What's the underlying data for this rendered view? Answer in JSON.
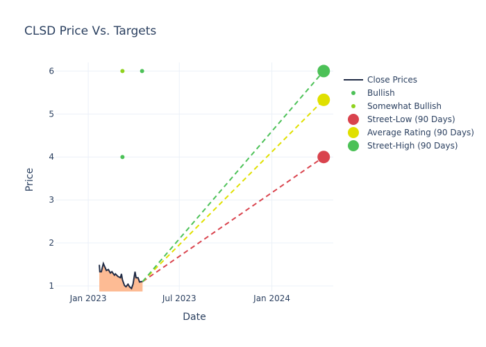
{
  "chart_data": {
    "type": "line",
    "title": "CLSD Price Vs. Targets",
    "xlabel": "Date",
    "ylabel": "Price",
    "xlim": [
      "2022-10-28",
      "2024-05-02"
    ],
    "ylim": [
      0.87,
      6.2
    ],
    "x_ticks": [
      {
        "date": "2023-01-01",
        "label": "Jan 2023"
      },
      {
        "date": "2023-07-01",
        "label": "Jul 2023"
      },
      {
        "date": "2024-01-01",
        "label": "Jan 2024"
      }
    ],
    "y_ticks": [
      1,
      2,
      3,
      4,
      5,
      6
    ],
    "grid": true,
    "legend_position": "right",
    "close_prices": {
      "name": "Close Prices",
      "color": "#1f2a44",
      "fill_color": "#fdbb94",
      "dates": [
        "2023-01-23",
        "2023-01-24",
        "2023-01-27",
        "2023-01-31",
        "2023-02-03",
        "2023-02-06",
        "2023-02-10",
        "2023-02-14",
        "2023-02-17",
        "2023-02-22",
        "2023-02-24",
        "2023-03-01",
        "2023-03-06",
        "2023-03-08",
        "2023-03-10",
        "2023-03-14",
        "2023-03-17",
        "2023-03-21",
        "2023-03-24",
        "2023-03-28",
        "2023-03-31",
        "2023-04-04",
        "2023-04-06",
        "2023-04-10",
        "2023-04-13",
        "2023-04-17",
        "2023-04-19"
      ],
      "values": [
        1.49,
        1.33,
        1.33,
        1.52,
        1.44,
        1.36,
        1.38,
        1.3,
        1.33,
        1.25,
        1.28,
        1.22,
        1.19,
        1.28,
        1.14,
        1.01,
        0.98,
        1.04,
        0.98,
        0.94,
        1.04,
        1.33,
        1.19,
        1.19,
        1.09,
        1.1,
        1.1
      ]
    },
    "ratings": [
      {
        "name": "Bullish",
        "color": "#4cc157",
        "points": [
          {
            "date": "2023-03-10",
            "value": 4
          },
          {
            "date": "2023-04-18",
            "value": 6
          }
        ]
      },
      {
        "name": "Somewhat Bullish",
        "color": "#8fd21e",
        "points": [
          {
            "date": "2023-03-10",
            "value": 6
          }
        ]
      }
    ],
    "targets": {
      "start": {
        "date": "2023-04-19",
        "value": 1.1
      },
      "date": "2024-04-13",
      "series": [
        {
          "name": "Street-Low (90 Days)",
          "value": 4,
          "color": "#d9434d"
        },
        {
          "name": "Average Rating (90 Days)",
          "value": 5.33,
          "color": "#e0e000"
        },
        {
          "name": "Street-High (90 Days)",
          "value": 6,
          "color": "#4cc157"
        }
      ]
    }
  }
}
